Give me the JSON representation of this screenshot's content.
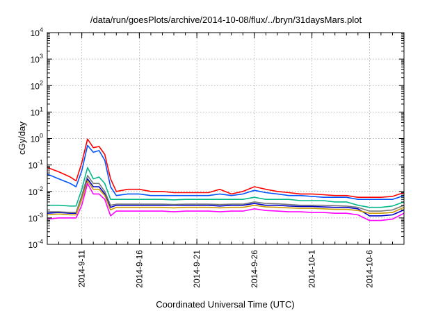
{
  "chart_data": {
    "type": "line",
    "title": "/data/run/goesPlots/archive/2014-10-08/flux/../bryn/31daysMars.plot",
    "xlabel": "Coordinated Universal Time (UTC)",
    "ylabel": "cGy/day",
    "yscale": "log",
    "ylim": [
      0.0001,
      10000
    ],
    "xlim": [
      "2014-09-08",
      "2014-10-09"
    ],
    "grid": true,
    "x_ticks": [
      {
        "date": "2014-09-11",
        "label": "2014-9-11"
      },
      {
        "date": "2014-09-16",
        "label": "2014-9-16"
      },
      {
        "date": "2014-09-21",
        "label": "2014-9-21"
      },
      {
        "date": "2014-09-26",
        "label": "2014-9-26"
      },
      {
        "date": "2014-10-01",
        "label": "2014-10-1"
      },
      {
        "date": "2014-10-06",
        "label": "2014-10-6"
      }
    ],
    "y_ticks": [
      {
        "exp": "4"
      },
      {
        "exp": "3"
      },
      {
        "exp": "2"
      },
      {
        "exp": "1"
      },
      {
        "exp": "0"
      },
      {
        "exp": "-1"
      },
      {
        "exp": "-2"
      },
      {
        "exp": "-3"
      },
      {
        "exp": "-4"
      }
    ],
    "y_tick_base": "10",
    "x": [
      "2014-09-08",
      "2014-09-09",
      "2014-09-10",
      "2014-09-10 12:00",
      "2014-09-11",
      "2014-09-11 12:00",
      "2014-09-12",
      "2014-09-12 12:00",
      "2014-09-13",
      "2014-09-13 12:00",
      "2014-09-14",
      "2014-09-15",
      "2014-09-16",
      "2014-09-17",
      "2014-09-18",
      "2014-09-19",
      "2014-09-20",
      "2014-09-21",
      "2014-09-22",
      "2014-09-23",
      "2014-09-24",
      "2014-09-25",
      "2014-09-26",
      "2014-09-27",
      "2014-09-28",
      "2014-09-29",
      "2014-09-30",
      "2014-10-01",
      "2014-10-02",
      "2014-10-03",
      "2014-10-04",
      "2014-10-05",
      "2014-10-06",
      "2014-10-07",
      "2014-10-08",
      "2014-10-09"
    ],
    "series": [
      {
        "color": "#ff0000",
        "values": [
          0.08,
          0.055,
          0.035,
          0.025,
          0.12,
          0.95,
          0.45,
          0.5,
          0.25,
          0.03,
          0.01,
          0.012,
          0.012,
          0.01,
          0.01,
          0.009,
          0.009,
          0.009,
          0.009,
          0.012,
          0.008,
          0.01,
          0.015,
          0.012,
          0.01,
          0.009,
          0.008,
          0.008,
          0.0075,
          0.007,
          0.007,
          0.006,
          0.006,
          0.006,
          0.0065,
          0.009
        ]
      },
      {
        "color": "#0055ff",
        "values": [
          0.045,
          0.03,
          0.02,
          0.015,
          0.06,
          0.55,
          0.3,
          0.35,
          0.15,
          0.015,
          0.007,
          0.008,
          0.008,
          0.007,
          0.007,
          0.007,
          0.007,
          0.007,
          0.007,
          0.008,
          0.007,
          0.008,
          0.011,
          0.009,
          0.008,
          0.007,
          0.007,
          0.0065,
          0.006,
          0.006,
          0.006,
          0.005,
          0.005,
          0.005,
          0.005,
          0.007
        ]
      },
      {
        "color": "#00b88a",
        "values": [
          0.003,
          0.003,
          0.0028,
          0.0028,
          0.012,
          0.08,
          0.03,
          0.035,
          0.02,
          0.005,
          0.005,
          0.005,
          0.005,
          0.005,
          0.005,
          0.0048,
          0.005,
          0.005,
          0.005,
          0.005,
          0.005,
          0.005,
          0.006,
          0.005,
          0.005,
          0.005,
          0.0045,
          0.0045,
          0.0045,
          0.004,
          0.004,
          0.003,
          0.0025,
          0.0025,
          0.0028,
          0.004
        ]
      },
      {
        "color": "#0000cc",
        "values": [
          0.0015,
          0.0016,
          0.0015,
          0.0015,
          0.006,
          0.03,
          0.015,
          0.015,
          0.008,
          0.0025,
          0.003,
          0.003,
          0.003,
          0.003,
          0.003,
          0.003,
          0.003,
          0.003,
          0.003,
          0.0028,
          0.003,
          0.003,
          0.0035,
          0.003,
          0.003,
          0.0028,
          0.0027,
          0.0027,
          0.0026,
          0.0025,
          0.0025,
          0.0022,
          0.0012,
          0.0012,
          0.0013,
          0.002
        ]
      },
      {
        "color": "#777777",
        "values": [
          0.0017,
          0.0017,
          0.0016,
          0.0016,
          0.007,
          0.04,
          0.02,
          0.02,
          0.01,
          0.003,
          0.0033,
          0.0033,
          0.0033,
          0.0033,
          0.0033,
          0.0032,
          0.0033,
          0.0033,
          0.0033,
          0.0032,
          0.0033,
          0.0033,
          0.004,
          0.0035,
          0.0034,
          0.0032,
          0.003,
          0.003,
          0.003,
          0.0029,
          0.0028,
          0.0025,
          0.0018,
          0.0018,
          0.002,
          0.003
        ]
      },
      {
        "color": "#cc9900",
        "values": [
          0.0013,
          0.0014,
          0.0013,
          0.0013,
          0.005,
          0.025,
          0.012,
          0.012,
          0.007,
          0.002,
          0.0025,
          0.0025,
          0.0025,
          0.0025,
          0.0025,
          0.0024,
          0.0025,
          0.0025,
          0.0025,
          0.0024,
          0.0025,
          0.0025,
          0.003,
          0.0026,
          0.0025,
          0.0024,
          0.0023,
          0.0023,
          0.0022,
          0.0021,
          0.0021,
          0.0019,
          0.0015,
          0.0015,
          0.0016,
          0.0025
        ]
      },
      {
        "color": "#ff00ff",
        "values": [
          0.0009,
          0.001,
          0.001,
          0.001,
          0.003,
          0.02,
          0.008,
          0.008,
          0.005,
          0.0012,
          0.0018,
          0.0018,
          0.0018,
          0.0018,
          0.0018,
          0.0017,
          0.0018,
          0.0018,
          0.0018,
          0.0017,
          0.0018,
          0.0018,
          0.0022,
          0.0019,
          0.0018,
          0.0017,
          0.0017,
          0.0016,
          0.0016,
          0.0015,
          0.0015,
          0.0013,
          0.0008,
          0.0008,
          0.0009,
          0.0015
        ]
      }
    ]
  }
}
